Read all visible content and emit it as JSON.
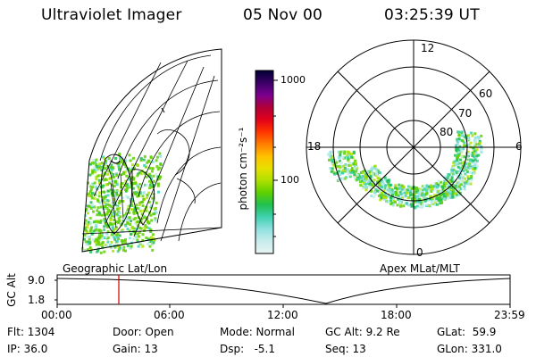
{
  "header": {
    "title": "Ultraviolet Imager",
    "date": "05 Nov 00",
    "time": "03:25:39 UT"
  },
  "left_panel": {
    "caption": "Geographic Lat/Lon"
  },
  "right_panel": {
    "caption": "Apex MLat/MLT",
    "mlt_labels": {
      "top": "12",
      "left": "18",
      "right": "6",
      "bottom": "0"
    },
    "lat_labels": [
      "60",
      "70",
      "80"
    ]
  },
  "colorbar": {
    "unit_label": "photon cm⁻²s⁻¹",
    "tick_1000": "1000",
    "tick_100": "100",
    "stops": [
      "#000033",
      "#3a0066",
      "#7a0090",
      "#b0003a",
      "#e0001a",
      "#ff3300",
      "#ff7a00",
      "#ffc000",
      "#e8e000",
      "#b0e000",
      "#60d000",
      "#20c050",
      "#40d0b0",
      "#90e0e0",
      "#c8ecec",
      "#e8f4f4"
    ]
  },
  "timeline": {
    "ylabel": "GC Alt",
    "y_ticks": [
      "9.0",
      "1.8"
    ],
    "x_ticks": [
      "00:00",
      "06:00",
      "12:00",
      "18:00",
      "23:59"
    ],
    "marker_color": "#cc0000"
  },
  "status": {
    "flt": "Flt: 1304",
    "ip": "IP: 36.0",
    "door": "Door: Open",
    "gain": "Gain: 13",
    "mode": "Mode: Normal",
    "dsp": "Dsp:   -5.1",
    "gcalt": "GC Alt: 9.2 Re",
    "seq": "Seq: 13",
    "glat": "GLat:  59.9",
    "glon": "GLon: 331.0"
  }
}
